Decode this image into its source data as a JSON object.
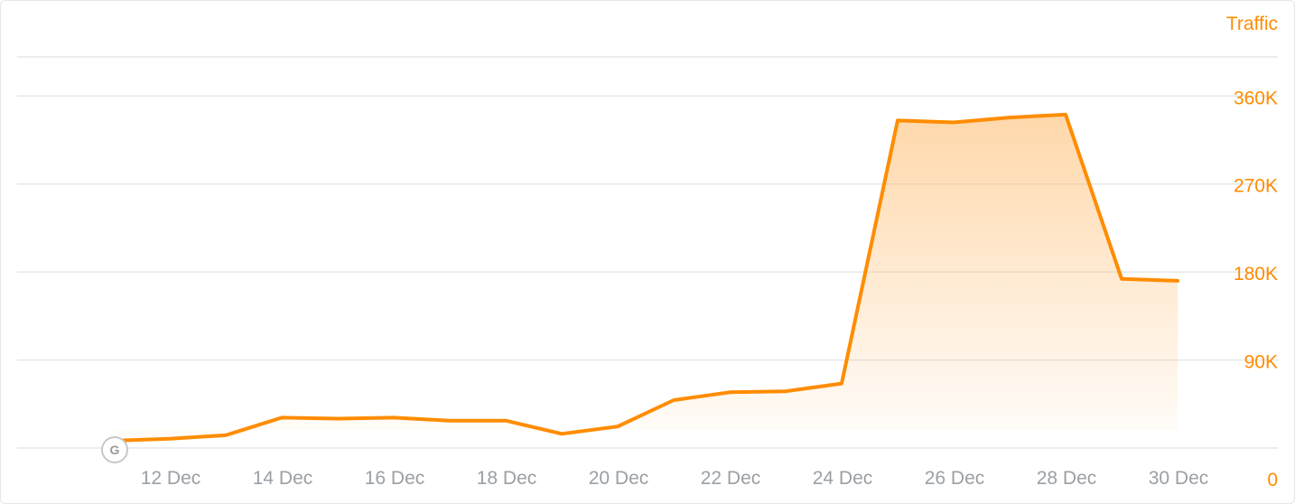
{
  "chart_data": {
    "type": "area",
    "title": "",
    "xlabel": "",
    "ylabel": "Traffic",
    "y_axis_position": "right",
    "ylim": [
      0,
      400000
    ],
    "yticks": [
      0,
      90000,
      180000,
      270000,
      360000
    ],
    "ytick_labels": [
      "0",
      "90K",
      "180K",
      "270K",
      "360K"
    ],
    "xtick_labels": [
      "12 Dec",
      "14 Dec",
      "16 Dec",
      "18 Dec",
      "20 Dec",
      "22 Dec",
      "24 Dec",
      "26 Dec",
      "28 Dec",
      "30 Dec"
    ],
    "grid": true,
    "accent_color": "#ff8c00",
    "series": [
      {
        "dates": [
          "11 Dec",
          "12 Dec",
          "13 Dec",
          "14 Dec",
          "15 Dec",
          "16 Dec",
          "17 Dec",
          "18 Dec",
          "19 Dec",
          "20 Dec",
          "21 Dec",
          "22 Dec",
          "23 Dec",
          "24 Dec",
          "25 Dec",
          "26 Dec",
          "27 Dec",
          "28 Dec",
          "29 Dec",
          "30 Dec"
        ],
        "values": [
          7500,
          9500,
          13000,
          31000,
          30000,
          31000,
          28000,
          28000,
          14500,
          22000,
          49000,
          57000,
          58000,
          66000,
          335000,
          333000,
          338000,
          341000,
          173000,
          171000
        ]
      }
    ],
    "annotations": [
      {
        "date": "11 Dec",
        "icon": "google-update-icon",
        "letter": "G"
      }
    ]
  }
}
